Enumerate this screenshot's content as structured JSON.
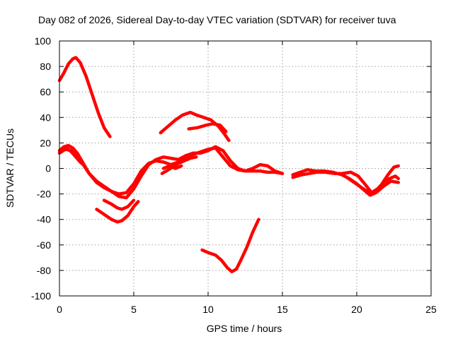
{
  "chart_data": {
    "type": "line",
    "title": "Day 082 of 2026, Sidereal Day-to-day VTEC variation (SDTVAR) for receiver tuva",
    "xlabel": "GPS time / hours",
    "ylabel": "SDTVAR / TECUs",
    "xlim": [
      0,
      25
    ],
    "ylim": [
      -100,
      100
    ],
    "xticks": [
      0,
      5,
      10,
      15,
      20,
      25
    ],
    "yticks": [
      -100,
      -80,
      -60,
      -40,
      -20,
      0,
      20,
      40,
      60,
      80,
      100
    ],
    "grid": true,
    "legend": "none",
    "color": "#ff0000",
    "series": [
      {
        "name": "track-high-arc",
        "x": [
          0,
          0.3,
          0.6,
          0.9,
          1.1,
          1.4,
          1.8,
          2.2,
          2.6,
          3.0,
          3.4
        ],
        "y": [
          69,
          75,
          82,
          86,
          87,
          83,
          72,
          58,
          44,
          32,
          25
        ]
      },
      {
        "name": "track-evening-arc",
        "x": [
          6.8,
          7.3,
          7.8,
          8.3,
          8.8,
          9.2,
          9.7,
          10.2,
          10.7,
          11.1,
          11.4
        ],
        "y": [
          28,
          33,
          38,
          42,
          44,
          42,
          40,
          38,
          33,
          27,
          22
        ]
      },
      {
        "name": "track-evening-short",
        "x": [
          8.7,
          9.3,
          9.9,
          10.3,
          10.8,
          11.2
        ],
        "y": [
          31,
          32,
          34,
          35,
          34,
          29
        ]
      },
      {
        "name": "track-low-dip",
        "x": [
          9.6,
          10.0,
          10.5,
          10.9,
          11.3,
          11.6,
          11.9,
          12.2,
          12.6,
          13.0,
          13.4
        ],
        "y": [
          -64,
          -66,
          -68,
          -72,
          -78,
          -81,
          -79,
          -72,
          -62,
          -50,
          -40
        ]
      },
      {
        "name": "track-minus40",
        "x": [
          2.5,
          3.0,
          3.5,
          3.9,
          4.2,
          4.6,
          5.0,
          5.3
        ],
        "y": [
          -32,
          -36,
          -40,
          -42,
          -41,
          -37,
          -30,
          -26
        ]
      },
      {
        "name": "track-minus30",
        "x": [
          3.0,
          3.5,
          3.9,
          4.2,
          4.6,
          5.0
        ],
        "y": [
          -25,
          -28,
          -31,
          -32,
          -30,
          -25
        ]
      },
      {
        "name": "track-main-a",
        "x": [
          0,
          0.3,
          0.6,
          0.9,
          1.2,
          1.6,
          2.0,
          2.5,
          3.0,
          3.5,
          4.0,
          4.5,
          5.0,
          5.5,
          6.0,
          6.5,
          7.0,
          7.5,
          8.0,
          8.5,
          9.0,
          9.5,
          10.0,
          10.5,
          11.0,
          11.5,
          12.0,
          12.5,
          13.0,
          13.5,
          14.0,
          14.5,
          15.0
        ],
        "y": [
          14,
          17,
          18,
          16,
          12,
          4,
          -4,
          -11,
          -15,
          -18,
          -20,
          -19,
          -12,
          -2,
          4,
          6,
          5,
          3,
          5,
          9,
          11,
          13,
          15,
          16,
          9,
          2,
          -1,
          -2,
          -2,
          -2,
          -3,
          -3,
          -4
        ]
      },
      {
        "name": "track-main-b",
        "x": [
          0,
          0.4,
          0.8,
          1.2,
          1.6,
          2.0,
          2.5,
          3.0,
          3.5,
          4.0,
          4.5,
          5.0,
          5.5,
          6.0,
          6.5,
          7.0,
          7.5,
          8.0,
          8.5,
          9.0,
          9.5,
          10.0,
          10.5,
          11.0,
          11.5,
          12.0,
          12.5,
          13.0,
          13.5,
          14.0,
          14.5,
          15.0
        ],
        "y": [
          12,
          15,
          14,
          10,
          3,
          -4,
          -10,
          -14,
          -18,
          -22,
          -23,
          -16,
          -6,
          3,
          7,
          9,
          8,
          7,
          10,
          12,
          12,
          14,
          17,
          14,
          6,
          0,
          -2,
          0,
          3,
          2,
          -2,
          -4
        ]
      },
      {
        "name": "track-main-c",
        "x": [
          0.5,
          0.8,
          1.1,
          1.4,
          1.7
        ],
        "y": [
          16,
          13,
          9,
          5,
          2
        ]
      },
      {
        "name": "track-short-d",
        "x": [
          6.9,
          7.2,
          7.6,
          8.0,
          8.4,
          8.8,
          9.2
        ],
        "y": [
          -4,
          -2,
          1,
          4,
          6,
          8,
          9
        ]
      },
      {
        "name": "track-short-e",
        "x": [
          7.0,
          7.4,
          7.8,
          8.2
        ],
        "y": [
          0,
          2,
          0,
          2
        ]
      },
      {
        "name": "track-right-a",
        "x": [
          15.7,
          16.2,
          16.7,
          17.2,
          17.8,
          18.4,
          19.0,
          19.5,
          20.0,
          20.5,
          20.9,
          21.3,
          21.7,
          22.1,
          22.5,
          22.8
        ],
        "y": [
          -5,
          -3,
          -1,
          -2,
          -2,
          -3,
          -5,
          -8,
          -12,
          -17,
          -21,
          -19,
          -12,
          -5,
          1,
          2
        ]
      },
      {
        "name": "track-right-b",
        "x": [
          15.7,
          16.3,
          16.8,
          17.3,
          17.9,
          18.5,
          19.0,
          19.6,
          20.1,
          20.6,
          21.0,
          21.4,
          21.8,
          22.2,
          22.6,
          22.8
        ],
        "y": [
          -7,
          -5,
          -4,
          -3,
          -3,
          -4,
          -4,
          -3,
          -6,
          -13,
          -19,
          -16,
          -11,
          -8,
          -6,
          -8
        ]
      },
      {
        "name": "track-right-c",
        "x": [
          19.2,
          19.7,
          20.2,
          20.7,
          21.0,
          21.4,
          21.8,
          22.3,
          22.8
        ],
        "y": [
          -6,
          -10,
          -14,
          -18,
          -20,
          -18,
          -14,
          -10,
          -11
        ]
      }
    ]
  }
}
